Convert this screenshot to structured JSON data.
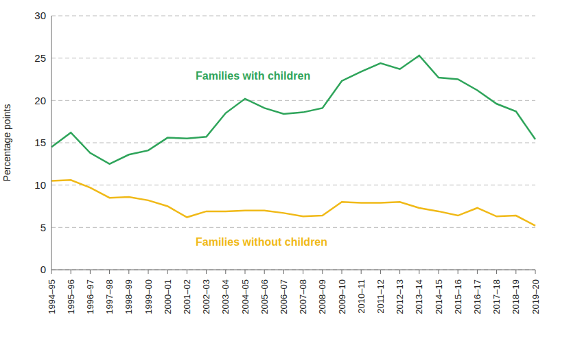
{
  "chart_data": {
    "type": "line",
    "y_label": "Percentage points",
    "categories": [
      "1994–95",
      "1995–96",
      "1996–97",
      "1997–98",
      "1998–99",
      "1999–00",
      "2000–01",
      "2001–02",
      "2002–03",
      "2003–04",
      "2004–05",
      "2005–06",
      "2006–07",
      "2007–08",
      "2008–09",
      "2009–10",
      "2010–11",
      "2011–12",
      "2012–13",
      "2013–14",
      "2014–15",
      "2015–16",
      "2016–17",
      "2017–18",
      "2018–19",
      "2019–20"
    ],
    "series": [
      {
        "name": "Families with children",
        "color": "#2ea45a",
        "values": [
          14.5,
          16.2,
          13.8,
          12.5,
          13.6,
          14.1,
          15.6,
          15.5,
          15.7,
          18.5,
          20.2,
          19.1,
          18.4,
          18.6,
          19.1,
          22.3,
          23.4,
          24.4,
          23.7,
          25.3,
          22.7,
          22.5,
          21.2,
          19.6,
          18.7,
          15.4
        ]
      },
      {
        "name": "Families without children",
        "color": "#f0b917",
        "values": [
          10.5,
          10.6,
          9.7,
          8.5,
          8.6,
          8.2,
          7.5,
          6.2,
          6.9,
          6.9,
          7.0,
          7.0,
          6.7,
          6.3,
          6.4,
          8.0,
          7.9,
          7.9,
          8.0,
          7.3,
          6.9,
          6.4,
          7.3,
          6.3,
          6.4,
          5.2
        ]
      }
    ],
    "ylim": [
      0,
      30
    ],
    "yticks": [
      0,
      5,
      10,
      15,
      20,
      25,
      30
    ],
    "grid": true
  }
}
